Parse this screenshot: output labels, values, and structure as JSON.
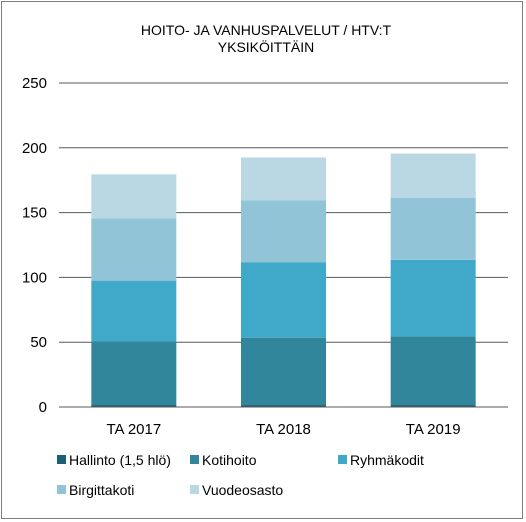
{
  "chart_data": {
    "type": "bar",
    "stacked": true,
    "title": [
      "HOITO-  JA VANHUSPALVELUT  / HTV:T",
      "YKSIKÖITTÄIN"
    ],
    "categories": [
      "TA 2017",
      "TA 2018",
      "TA 2019"
    ],
    "series": [
      {
        "name": "Hallinto (1,5 hlö)",
        "values": [
          1.5,
          1.5,
          1.5
        ],
        "color": "#1f5f73"
      },
      {
        "name": "Kotihoito",
        "values": [
          49,
          52,
          53
        ],
        "color": "#31869b"
      },
      {
        "name": "Ryhmäkodit",
        "values": [
          47,
          58,
          59
        ],
        "color": "#40a8c8"
      },
      {
        "name": "Birgittakoti",
        "values": [
          48,
          48,
          48
        ],
        "color": "#92c4d8"
      },
      {
        "name": "Vuodeosasto",
        "values": [
          34,
          33,
          34
        ],
        "color": "#b9d8e4"
      }
    ],
    "ylim": [
      0,
      250
    ],
    "yticks": [
      0,
      50,
      100,
      150,
      200,
      250
    ],
    "grid": true,
    "legend": "bottom"
  }
}
